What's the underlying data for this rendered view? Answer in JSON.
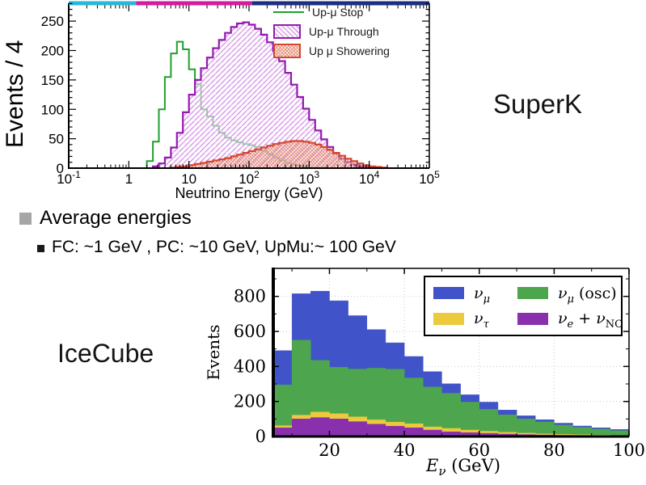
{
  "slide": {
    "background": "#ffffff",
    "superk_label": "SuperK",
    "icecube_label": "IceCube",
    "bullet_text": "Average energies",
    "bullet_color": "#a6a6a6",
    "sub_bullet_text": "FC: ~1 GeV , PC: ~10 GeV,  UpMu:~ 100 GeV"
  },
  "chart_data": [
    {
      "id": "superk",
      "type": "area",
      "subtype": "overlaid-log-histograms",
      "title": "",
      "xlabel": "Neutrino Energy (GeV)",
      "ylabel": "Events / 4",
      "x_scale": "log10",
      "xlim_log10": [
        -1,
        5
      ],
      "ylim": [
        0,
        285
      ],
      "grid": false,
      "yticks": [
        0,
        50,
        100,
        150,
        200,
        250
      ],
      "xticks": [
        {
          "log10": -1,
          "base": "10",
          "exp": "-1"
        },
        {
          "log10": 0,
          "base": "1",
          "exp": ""
        },
        {
          "log10": 1,
          "base": "10",
          "exp": ""
        },
        {
          "log10": 2,
          "base": "10",
          "exp": "2"
        },
        {
          "log10": 3,
          "base": "10",
          "exp": "3"
        },
        {
          "log10": 4,
          "base": "10",
          "exp": "4"
        },
        {
          "log10": 5,
          "base": "10",
          "exp": "5"
        }
      ],
      "top_edge_segments": [
        {
          "color": "#29b6d8",
          "from_log10": -1.0,
          "to_log10": 0.12
        },
        {
          "color": "#d41a9e",
          "from_log10": 0.12,
          "to_log10": 2.05
        },
        {
          "color": "#1c2e80",
          "from_log10": 2.05,
          "to_log10": 5.0
        }
      ],
      "legend_position": "upper right",
      "legend": [
        {
          "label": "Up-μ Stop",
          "style": "line",
          "color": "#1fa12e"
        },
        {
          "label": "Up-μ Through",
          "style": "hatch",
          "color": "#941bb0",
          "hatch_color": "#cf8fe0",
          "bg": "#fdf6fe"
        },
        {
          "label": "Up μ Showering",
          "style": "crosshatch",
          "color": "#d4472e",
          "hatch_color": "#e6927b",
          "bg": "#fdf3f0"
        }
      ],
      "series": [
        {
          "name": "Up-μ Stop",
          "style": "line",
          "color": "#1fa12e",
          "start_log10": 0.3,
          "bin_log10_width": 0.1,
          "values": [
            12,
            45,
            100,
            155,
            195,
            215,
            202,
            168,
            143,
            100,
            88,
            72,
            60,
            52,
            47,
            44,
            41,
            39,
            36,
            30,
            24,
            18,
            13,
            9,
            6,
            4,
            2,
            1,
            1,
            1
          ]
        },
        {
          "name": "Up-μ Through",
          "style": "hatch",
          "color": "#941bb0",
          "hatch_color": "#cf8fe0",
          "start_log10": 0.4,
          "bin_log10_width": 0.1,
          "values": [
            3,
            8,
            18,
            35,
            60,
            95,
            125,
            150,
            170,
            188,
            204,
            218,
            230,
            240,
            246,
            248,
            244,
            237,
            227,
            214,
            199,
            182,
            162,
            142,
            121,
            101,
            82,
            64,
            49,
            36,
            25,
            16,
            10,
            6,
            3,
            2,
            1
          ]
        },
        {
          "name": "Up μ Showering",
          "style": "crosshatch",
          "color": "#d4472e",
          "hatch_color": "#e6927b",
          "start_log10": 0.7,
          "bin_log10_width": 0.1,
          "values": [
            1,
            2,
            3,
            5,
            7,
            9,
            11,
            13,
            15,
            17,
            20,
            23,
            26,
            29,
            32,
            35,
            38,
            41,
            43,
            45,
            46,
            46,
            45,
            43,
            40,
            36,
            31,
            26,
            21,
            16,
            12,
            8,
            5,
            3,
            2,
            1
          ]
        }
      ]
    },
    {
      "id": "icecube",
      "type": "area",
      "subtype": "stacked-histogram",
      "stacked": true,
      "title": "",
      "xlabel_parts": [
        {
          "t": "E",
          "i": true,
          "sub": "ν",
          "subi": true
        },
        {
          "t": " (GeV)",
          "i": false
        }
      ],
      "ylabel": "Events",
      "xlim": [
        5,
        100
      ],
      "ylim": [
        0,
        960
      ],
      "bin_start": 5,
      "bin_width": 5,
      "grid": true,
      "xticks": [
        20,
        40,
        60,
        80,
        100
      ],
      "yticks": [
        0,
        200,
        400,
        600,
        800
      ],
      "legend_position": "upper right",
      "legend": [
        {
          "key": "nu_mu",
          "color": "#4053c8",
          "parts": [
            {
              "t": "ν",
              "i": true,
              "sub": "μ",
              "subi": true
            }
          ]
        },
        {
          "key": "nu_mu_osc",
          "color": "#4da64d",
          "parts": [
            {
              "t": "ν",
              "i": true,
              "sub": "μ",
              "subi": true
            },
            {
              "t": "  (osc)",
              "i": false
            }
          ]
        },
        {
          "key": "nu_tau",
          "color": "#ecca3d",
          "parts": [
            {
              "t": "ν",
              "i": true,
              "sub": "τ",
              "subi": true
            }
          ]
        },
        {
          "key": "nu_e_nc",
          "color": "#8931ad",
          "parts": [
            {
              "t": "ν",
              "i": true,
              "sub": "e",
              "subi": true
            },
            {
              "t": " + ",
              "i": false
            },
            {
              "t": "ν",
              "i": true,
              "sub": "NC",
              "subi": false
            }
          ]
        }
      ],
      "series": [
        {
          "name": "ν_e + ν_NC",
          "color": "#8931ad",
          "values": [
            50,
            100,
            108,
            100,
            85,
            70,
            59,
            50,
            37,
            27,
            22,
            18,
            14,
            11,
            9,
            7,
            6,
            5,
            4
          ]
        },
        {
          "name": "ν_τ",
          "color": "#ecca3d",
          "values": [
            12,
            22,
            32,
            30,
            27,
            25,
            23,
            23,
            18,
            19,
            15,
            12,
            10,
            8,
            6,
            5,
            4,
            3,
            2
          ]
        },
        {
          "name": "ν_μ (osc)",
          "color": "#4da64d",
          "values": [
            233,
            428,
            295,
            265,
            273,
            295,
            302,
            261,
            228,
            201,
            159,
            125,
            99,
            81,
            68,
            53,
            42,
            34,
            27
          ]
        },
        {
          "name": "ν_μ",
          "color": "#4053c8",
          "values": [
            195,
            265,
            395,
            380,
            305,
            220,
            151,
            123,
            87,
            54,
            42,
            41,
            28,
            18,
            13,
            11,
            8,
            8,
            7
          ]
        }
      ]
    }
  ]
}
